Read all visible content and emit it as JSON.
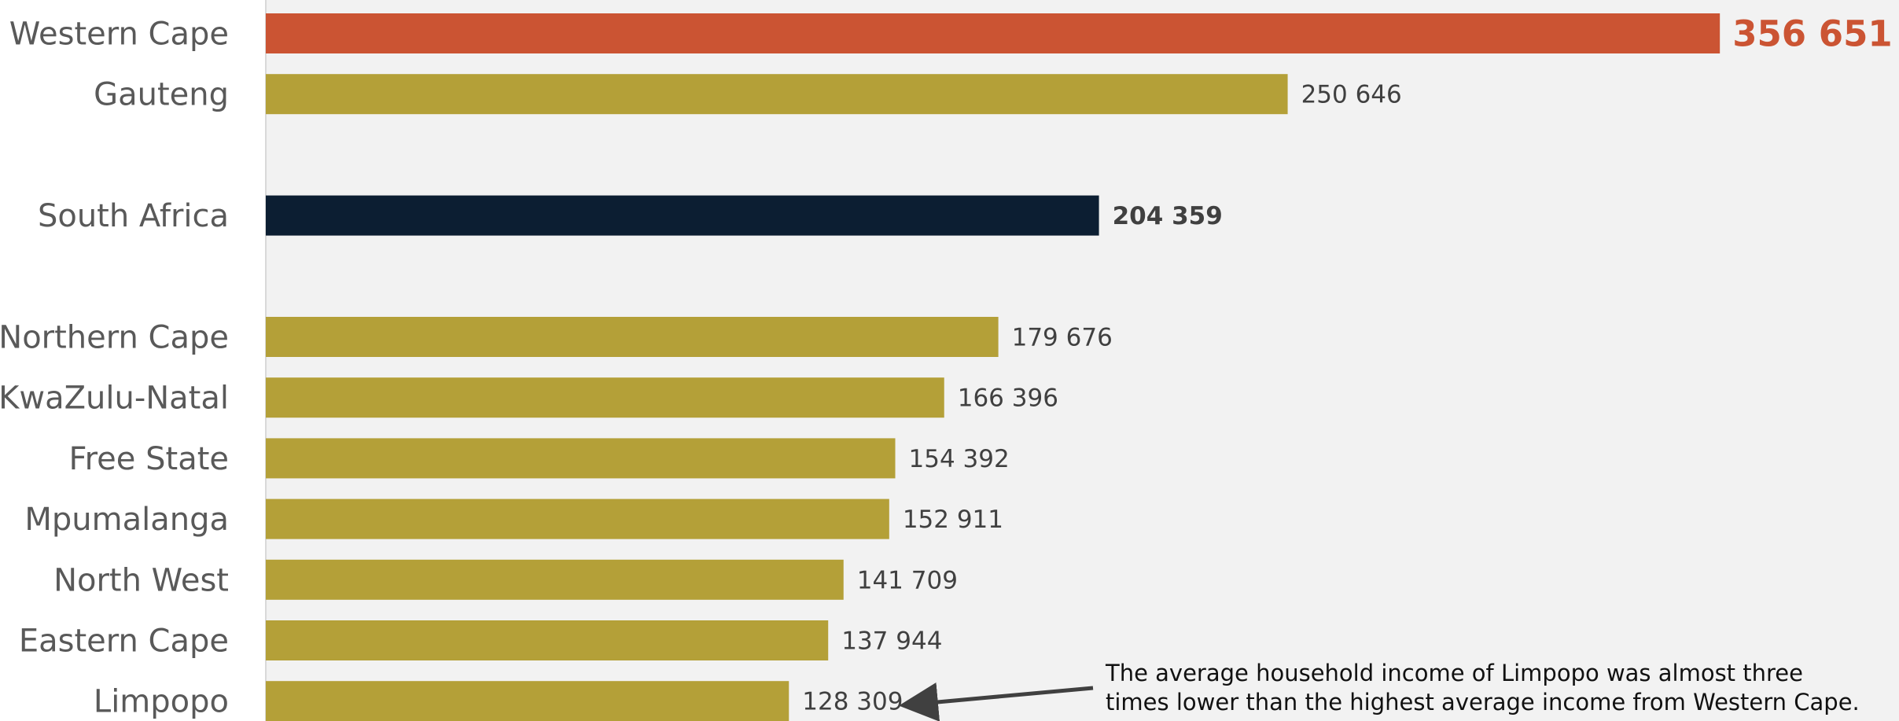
{
  "colors": {
    "panel": "#f2f2f2",
    "axis": "#d9d9d9",
    "province": "#b4a038",
    "highlight": "#cb5433",
    "national": "#0c1e32",
    "arrow": "#404040"
  },
  "chart_data": {
    "type": "bar",
    "orientation": "horizontal",
    "title": "",
    "xlabel": "",
    "ylabel": "",
    "xlim": [
      0,
      380000
    ],
    "grid": false,
    "legend": "none",
    "rows": [
      {
        "category": "Western Cape",
        "value": 356651,
        "value_label": "356 651",
        "style": "highlight",
        "slot": 0
      },
      {
        "category": "Gauteng",
        "value": 250646,
        "value_label": "250 646",
        "style": "province",
        "slot": 1
      },
      {
        "category": "South Africa",
        "value": 204359,
        "value_label": "204 359",
        "style": "national",
        "slot": 3
      },
      {
        "category": "Northern Cape",
        "value": 179676,
        "value_label": "179 676",
        "style": "province",
        "slot": 5
      },
      {
        "category": "KwaZulu-Natal",
        "value": 166396,
        "value_label": "166 396",
        "style": "province",
        "slot": 6
      },
      {
        "category": "Free State",
        "value": 154392,
        "value_label": "154 392",
        "style": "province",
        "slot": 7
      },
      {
        "category": "Mpumalanga",
        "value": 152911,
        "value_label": "152 911",
        "style": "province",
        "slot": 8
      },
      {
        "category": "North West",
        "value": 141709,
        "value_label": "141 709",
        "style": "province",
        "slot": 9
      },
      {
        "category": "Eastern Cape",
        "value": 137944,
        "value_label": "137 944",
        "style": "province",
        "slot": 10
      },
      {
        "category": "Limpopo",
        "value": 128309,
        "value_label": "128 309",
        "style": "province",
        "slot": 11
      }
    ],
    "annotation": {
      "target": "Limpopo",
      "lines": [
        "The average household income of Limpopo was almost three",
        "times lower than the highest average income from Western Cape."
      ]
    }
  }
}
